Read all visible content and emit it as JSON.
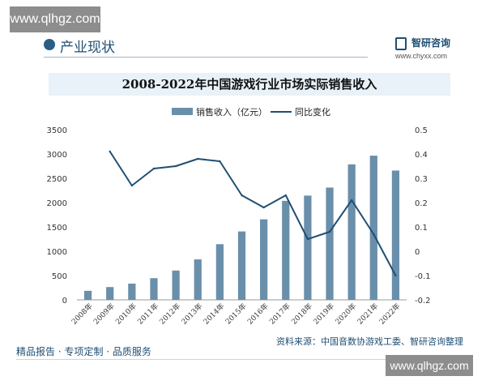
{
  "watermark": {
    "top_text": "www.qlhgz.com",
    "bottom_text": "www.qlhgz.com"
  },
  "header": {
    "section_title": "产业现状",
    "brand_name": "智研咨询",
    "brand_url": "www.chyxx.com"
  },
  "footer": {
    "tagline": "精品报告 · 专项定制 · 品质服务",
    "source": "资料来源：中国音数协游戏工委、智研咨询整理"
  },
  "colors": {
    "bar": "#6a8fab",
    "line": "#1f4f73",
    "title_band": "#e9f2f8"
  },
  "chart_data": {
    "type": "bar",
    "title": "2008-2022年中国游戏行业市场实际销售收入",
    "categories": [
      "2008年",
      "2009年",
      "2010年",
      "2011年",
      "2012年",
      "2013年",
      "2014年",
      "2015年",
      "2016年",
      "2017年",
      "2018年",
      "2019年",
      "2020年",
      "2021年",
      "2022年"
    ],
    "series": [
      {
        "name": "销售收入（亿元）",
        "type": "bar",
        "axis": "left",
        "values": [
          186,
          263,
          334,
          446,
          603,
          832,
          1145,
          1407,
          1656,
          2036,
          2144,
          2309,
          2787,
          2965,
          2659
        ]
      },
      {
        "name": "同比变化",
        "type": "line",
        "axis": "right",
        "values": [
          null,
          0.41,
          0.27,
          0.34,
          0.35,
          0.38,
          0.37,
          0.23,
          0.18,
          0.23,
          0.05,
          0.08,
          0.21,
          0.07,
          -0.1
        ]
      }
    ],
    "y_left": {
      "ylim": [
        0,
        3500
      ],
      "ticks": [
        "0",
        "500",
        "1000",
        "1500",
        "2000",
        "2500",
        "3000",
        "3500"
      ]
    },
    "y_right": {
      "ylim": [
        -0.2,
        0.5
      ],
      "ticks": [
        "-0.2",
        "-0.1",
        "0",
        "0.1",
        "0.2",
        "0.3",
        "0.4",
        "0.5"
      ]
    },
    "legend_position": "top-center",
    "grid": false
  }
}
